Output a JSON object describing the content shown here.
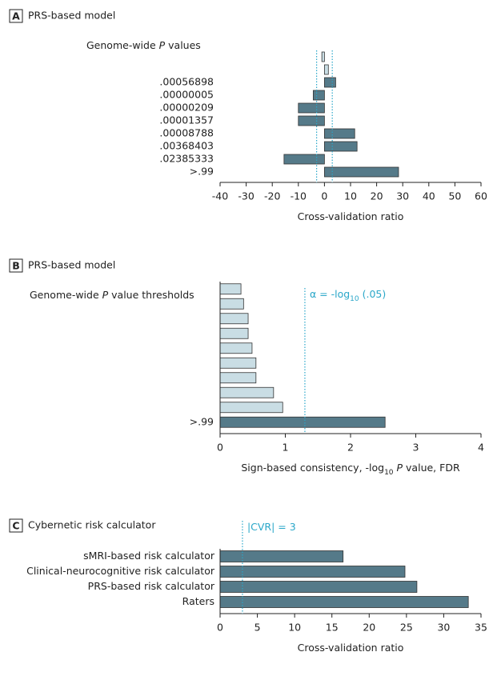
{
  "chart_data": [
    {
      "type": "bar",
      "panel": "A",
      "title": "PRS-based model",
      "y_title": [
        {
          "text": "Genome-wide "
        },
        {
          "text": "P",
          "style": "italic"
        },
        {
          "text": " values"
        }
      ],
      "x_title": [
        {
          "text": "Cross-validation ratio"
        }
      ],
      "categories": [
        null,
        null,
        ".00056898",
        ".00000005",
        ".00000209",
        ".00001357",
        ".00008788",
        ".00368403",
        ".02385333",
        ">.99"
      ],
      "values": [
        -1,
        1.5,
        4.3,
        -4.3,
        -10,
        -10,
        11.6,
        12.5,
        -15.5,
        28.4
      ],
      "colors": [
        "#c9dde4",
        "#c9dde4",
        "#557a89",
        "#557a89",
        "#557a89",
        "#557a89",
        "#557a89",
        "#557a89",
        "#557a89",
        "#557a89"
      ],
      "xlim": [
        -40,
        60
      ],
      "xticks": [
        -40,
        -30,
        -20,
        -10,
        0,
        10,
        20,
        30,
        40,
        50,
        60
      ],
      "reference_lines": [
        {
          "value": -3
        },
        {
          "value": 3
        }
      ],
      "reference_color": "#2aa7c9"
    },
    {
      "type": "bar",
      "panel": "B",
      "title": "PRS-based model",
      "y_title": [
        {
          "text": "Genome-wide "
        },
        {
          "text": "P",
          "style": "italic"
        },
        {
          "text": " value thresholds"
        }
      ],
      "x_title": [
        {
          "text": "Sign-based consistency, -log"
        },
        {
          "text": "10",
          "style": "sub"
        },
        {
          "text": " "
        },
        {
          "text": "P",
          "style": "italic"
        },
        {
          "text": " value, FDR"
        }
      ],
      "categories": [
        null,
        null,
        null,
        null,
        null,
        null,
        null,
        null,
        null,
        ">.99"
      ],
      "values": [
        0.32,
        0.36,
        0.43,
        0.43,
        0.49,
        0.55,
        0.55,
        0.82,
        0.96,
        2.53
      ],
      "colors": [
        "#c9dde4",
        "#c9dde4",
        "#c9dde4",
        "#c9dde4",
        "#c9dde4",
        "#c9dde4",
        "#c9dde4",
        "#c9dde4",
        "#c9dde4",
        "#557a89"
      ],
      "xlim": [
        0,
        4
      ],
      "xticks": [
        0,
        1,
        2,
        3,
        4
      ],
      "reference_lines": [
        {
          "value": 1.3,
          "label": [
            {
              "text": "α = -log"
            },
            {
              "text": "10",
              "style": "sub"
            },
            {
              "text": " (.05)"
            }
          ]
        }
      ],
      "reference_color": "#2aa7c9"
    },
    {
      "type": "bar",
      "panel": "C",
      "title": "Cybernetic risk calculator",
      "x_title": [
        {
          "text": "Cross-validation ratio"
        }
      ],
      "categories": [
        "sMRI-based risk calculator",
        "Clinical-neurocognitive risk calculator",
        "PRS-based risk calculator",
        "Raters"
      ],
      "values": [
        16.5,
        24.8,
        26.4,
        33.3
      ],
      "colors": [
        "#557a89",
        "#557a89",
        "#557a89",
        "#557a89"
      ],
      "xlim": [
        0,
        35
      ],
      "xticks": [
        0,
        5,
        10,
        15,
        20,
        25,
        30,
        35
      ],
      "reference_lines": [
        {
          "value": 3,
          "label": [
            {
              "text": "|CVR| = 3"
            }
          ]
        }
      ],
      "reference_color": "#2aa7c9"
    }
  ]
}
